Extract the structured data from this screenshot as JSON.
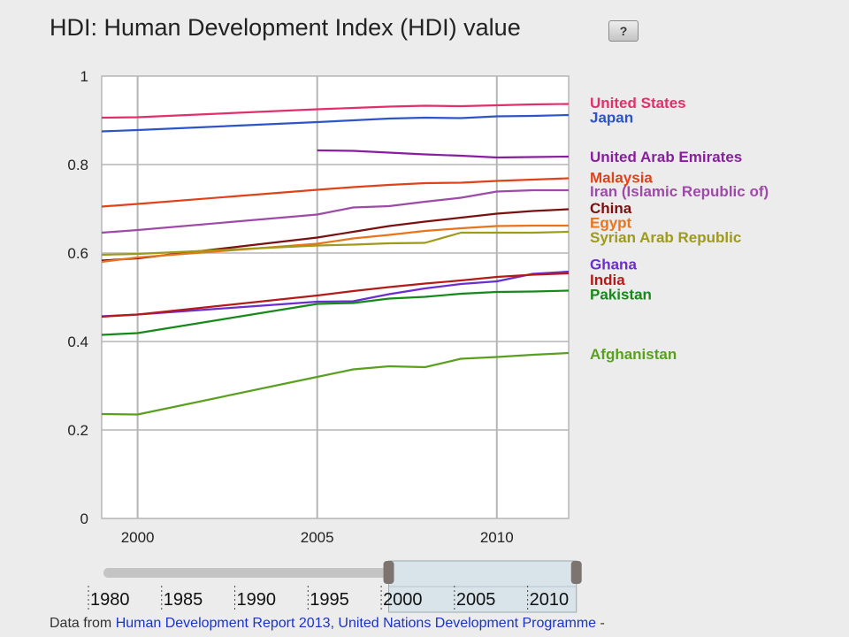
{
  "header": {
    "title": "HDI: Human Development Index (HDI) value",
    "help_label": "?"
  },
  "colors": {
    "background": "#ececec",
    "plot_background": "#ffffff",
    "grid": "#b5b5b5",
    "slider_window": "#d8e4ea",
    "slider_handle": "#7d7470",
    "link": "#1a33c8"
  },
  "chart_data": {
    "type": "line",
    "title": "HDI: Human Development Index (HDI) value",
    "xlabel": "",
    "ylabel": "",
    "xlim": [
      1999,
      2012
    ],
    "ylim": [
      0,
      1
    ],
    "grid": true,
    "legend": "right",
    "x_ticks": [
      2000,
      2005,
      2010
    ],
    "y_ticks": [
      0,
      0.2,
      0.4,
      0.6,
      0.8,
      1
    ],
    "y_tick_labels": [
      "0",
      "0.2",
      "0.4",
      "0.6",
      "0.8",
      "1"
    ],
    "x_tick_labels": [
      "2000",
      "2005",
      "2010"
    ],
    "series": [
      {
        "name": "United States",
        "color": "#e0306a",
        "label_y": 0.94,
        "x": [
          1999,
          2000,
          2005,
          2006,
          2007,
          2008,
          2009,
          2010,
          2011,
          2012
        ],
        "y": [
          0.906,
          0.907,
          0.925,
          0.928,
          0.931,
          0.933,
          0.932,
          0.934,
          0.936,
          0.937
        ]
      },
      {
        "name": "Japan",
        "color": "#2e55c8",
        "label_y": 0.907,
        "x": [
          1999,
          2000,
          2005,
          2006,
          2007,
          2008,
          2009,
          2010,
          2011,
          2012
        ],
        "y": [
          0.875,
          0.878,
          0.896,
          0.9,
          0.904,
          0.906,
          0.905,
          0.909,
          0.91,
          0.912
        ]
      },
      {
        "name": "United Arab Emirates",
        "color": "#8a1ea0",
        "label_y": 0.818,
        "x": [
          2005,
          2006,
          2007,
          2008,
          2009,
          2010,
          2011,
          2012
        ],
        "y": [
          0.832,
          0.831,
          0.827,
          0.823,
          0.82,
          0.816,
          0.817,
          0.818
        ]
      },
      {
        "name": "Malaysia",
        "color": "#e0421a",
        "label_y": 0.771,
        "x": [
          1999,
          2000,
          2005,
          2006,
          2007,
          2008,
          2009,
          2010,
          2011,
          2012
        ],
        "y": [
          0.705,
          0.711,
          0.743,
          0.749,
          0.754,
          0.758,
          0.759,
          0.763,
          0.766,
          0.769
        ]
      },
      {
        "name": "Iran (Islamic Republic of)",
        "color": "#9e4aa8",
        "label_y": 0.74,
        "x": [
          1999,
          2000,
          2005,
          2006,
          2007,
          2008,
          2009,
          2010,
          2011,
          2012
        ],
        "y": [
          0.646,
          0.652,
          0.687,
          0.703,
          0.706,
          0.716,
          0.725,
          0.739,
          0.742,
          0.742
        ]
      },
      {
        "name": "China",
        "color": "#7a1010",
        "label_y": 0.702,
        "x": [
          1999,
          2000,
          2005,
          2006,
          2007,
          2008,
          2009,
          2010,
          2011,
          2012
        ],
        "y": [
          0.583,
          0.588,
          0.635,
          0.648,
          0.661,
          0.671,
          0.68,
          0.689,
          0.695,
          0.699
        ]
      },
      {
        "name": "Egypt",
        "color": "#e8741c",
        "label_y": 0.669,
        "x": [
          1999,
          2000,
          2005,
          2006,
          2007,
          2008,
          2009,
          2010,
          2011,
          2012
        ],
        "y": [
          0.58,
          0.59,
          0.621,
          0.633,
          0.641,
          0.65,
          0.656,
          0.661,
          0.662,
          0.662
        ]
      },
      {
        "name": "Syrian Arab Republic",
        "color": "#9e9a1a",
        "label_y": 0.636,
        "x": [
          1999,
          2000,
          2005,
          2006,
          2007,
          2008,
          2009,
          2010,
          2011,
          2012
        ],
        "y": [
          0.596,
          0.598,
          0.617,
          0.619,
          0.622,
          0.623,
          0.646,
          0.646,
          0.646,
          0.648
        ]
      },
      {
        "name": "Ghana",
        "color": "#6a2ed0",
        "label_y": 0.575,
        "x": [
          1999,
          2000,
          2005,
          2006,
          2007,
          2008,
          2009,
          2010,
          2011,
          2012
        ],
        "y": [
          0.457,
          0.461,
          0.49,
          0.491,
          0.507,
          0.52,
          0.53,
          0.536,
          0.553,
          0.558
        ]
      },
      {
        "name": "India",
        "color": "#b51a1a",
        "label_y": 0.54,
        "x": [
          1999,
          2000,
          2005,
          2006,
          2007,
          2008,
          2009,
          2010,
          2011,
          2012
        ],
        "y": [
          0.456,
          0.461,
          0.504,
          0.514,
          0.523,
          0.531,
          0.538,
          0.546,
          0.551,
          0.554
        ]
      },
      {
        "name": "Pakistan",
        "color": "#148a1a",
        "label_y": 0.507,
        "x": [
          1999,
          2000,
          2005,
          2006,
          2007,
          2008,
          2009,
          2010,
          2011,
          2012
        ],
        "y": [
          0.415,
          0.419,
          0.485,
          0.487,
          0.497,
          0.501,
          0.508,
          0.512,
          0.513,
          0.515
        ]
      },
      {
        "name": "Afghanistan",
        "color": "#5aa020",
        "label_y": 0.372,
        "x": [
          1999,
          2000,
          2005,
          2006,
          2007,
          2008,
          2009,
          2010,
          2011,
          2012
        ],
        "y": [
          0.236,
          0.235,
          0.32,
          0.337,
          0.344,
          0.342,
          0.361,
          0.365,
          0.37,
          0.374
        ]
      }
    ]
  },
  "timeline": {
    "labels": [
      "1980",
      "1985",
      "1990",
      "1995",
      "2000",
      "2005",
      "2010"
    ],
    "range_start": 1999,
    "range_end": 2012
  },
  "footer": {
    "prefix": "Data from ",
    "link_text": "Human Development Report 2013, United Nations Development Programme",
    "suffix": " -"
  }
}
